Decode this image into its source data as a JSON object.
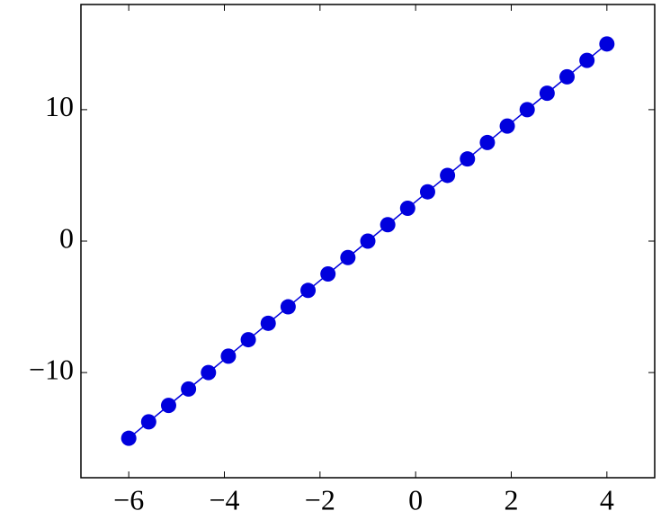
{
  "chart_data": {
    "type": "line",
    "x": [
      -6,
      -5.5833,
      -5.1667,
      -4.75,
      -4.3333,
      -3.9167,
      -3.5,
      -3.0833,
      -2.6667,
      -2.25,
      -1.8333,
      -1.4167,
      -1,
      -0.5833,
      -0.1667,
      0.25,
      0.6667,
      1.0833,
      1.5,
      1.9167,
      2.3333,
      2.75,
      3.1667,
      3.5833,
      4
    ],
    "series": [
      {
        "color": "#0000dd",
        "values": [
          -15,
          -13.75,
          -12.5,
          -11.25,
          -10,
          -8.75,
          -7.5,
          -6.25,
          -5,
          -3.75,
          -2.5,
          -1.25,
          0,
          1.25,
          2.5,
          3.75,
          5,
          6.25,
          7.5,
          8.75,
          10,
          11.25,
          12.5,
          13.75,
          15
        ]
      }
    ],
    "xlim": [
      -7,
      5
    ],
    "ylim": [
      -18,
      18
    ],
    "xticks": [
      {
        "value": -6,
        "label": "−6"
      },
      {
        "value": -4,
        "label": "−4"
      },
      {
        "value": -2,
        "label": "−2"
      },
      0,
      2,
      4
    ],
    "yticks": [
      {
        "value": -10,
        "label": "−10"
      },
      0,
      10
    ],
    "grid": false
  }
}
